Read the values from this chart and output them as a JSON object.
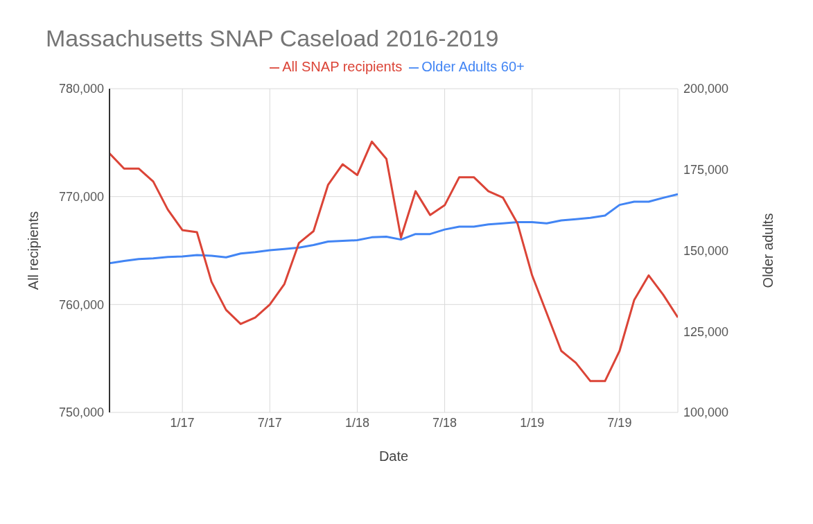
{
  "chart_data": {
    "type": "line",
    "title": "Massachusetts SNAP Caseload 2016-2019",
    "xlabel": "Date",
    "ylabel": "All recipients",
    "y2label": "Older adults",
    "legend": "top",
    "grid": true,
    "marker": "none",
    "line_style": "solid",
    "x": [
      "2016-08",
      "2016-09",
      "2016-10",
      "2016-11",
      "2016-12",
      "2017-01",
      "2017-02",
      "2017-03",
      "2017-04",
      "2017-05",
      "2017-06",
      "2017-07",
      "2017-08",
      "2017-09",
      "2017-10",
      "2017-11",
      "2017-12",
      "2018-01",
      "2018-02",
      "2018-03",
      "2018-04",
      "2018-05",
      "2018-06",
      "2018-07",
      "2018-08",
      "2018-09",
      "2018-10",
      "2018-11",
      "2018-12",
      "2019-01",
      "2019-02",
      "2019-03",
      "2019-04",
      "2019-05",
      "2019-06",
      "2019-07",
      "2019-08",
      "2019-09",
      "2019-10",
      "2019-11"
    ],
    "xlim": [
      "2016-08",
      "2019-11"
    ],
    "xticks": [
      {
        "value": "2017-01",
        "label": "1/17"
      },
      {
        "value": "2017-07",
        "label": "7/17"
      },
      {
        "value": "2018-01",
        "label": "1/18"
      },
      {
        "value": "2018-07",
        "label": "7/18"
      },
      {
        "value": "2019-01",
        "label": "1/19"
      },
      {
        "value": "2019-07",
        "label": "7/19"
      }
    ],
    "ylim": [
      750000,
      780000
    ],
    "yticks": [
      {
        "value": 750000,
        "label": "750,000"
      },
      {
        "value": 760000,
        "label": "760,000"
      },
      {
        "value": 770000,
        "label": "770,000"
      },
      {
        "value": 780000,
        "label": "780,000"
      }
    ],
    "y2lim": [
      100000,
      200000
    ],
    "y2ticks": [
      {
        "value": 100000,
        "label": "100,000"
      },
      {
        "value": 125000,
        "label": "125,000"
      },
      {
        "value": 150000,
        "label": "150,000"
      },
      {
        "value": 175000,
        "label": "175,000"
      },
      {
        "value": 200000,
        "label": "200,000"
      }
    ],
    "series": [
      {
        "name": "Older Adults 60+",
        "color": "#4285f4",
        "axis": "y2",
        "values": [
          146100,
          146800,
          147400,
          147600,
          148000,
          148200,
          148600,
          148400,
          147900,
          149100,
          149500,
          150100,
          150500,
          150900,
          151700,
          152800,
          153000,
          153200,
          154100,
          154300,
          153400,
          155100,
          155100,
          156500,
          157400,
          157400,
          158100,
          158400,
          158800,
          158800,
          158400,
          159300,
          159700,
          160100,
          160800,
          164100,
          165100,
          165100,
          166300,
          167400
        ]
      },
      {
        "name": "All SNAP recipients",
        "color": "#db4437",
        "values": [
          774000,
          772600,
          772600,
          771400,
          768800,
          766900,
          766700,
          762100,
          759500,
          758200,
          758800,
          760000,
          761900,
          765700,
          766800,
          771100,
          773000,
          772000,
          775100,
          773500,
          766200,
          770500,
          768300,
          769200,
          771800,
          771800,
          770500,
          769900,
          767500,
          762700,
          759200,
          755700,
          754600,
          752900,
          752900,
          755700,
          760400,
          762700,
          760900,
          758800
        ]
      }
    ]
  }
}
